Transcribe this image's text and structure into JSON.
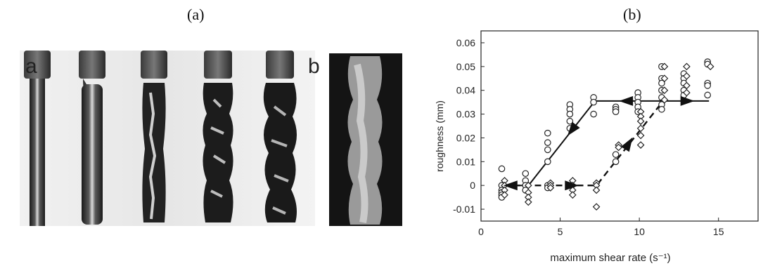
{
  "panel_labels": {
    "left": "(a)",
    "right": "(b)"
  },
  "photo": {
    "sublabel_a": "a",
    "sublabel_b": "b"
  },
  "chart_data": {
    "type": "scatter",
    "xlabel": "maximum shear rate (s⁻¹)",
    "ylabel": "roughness (mm)",
    "xlim": [
      0,
      17.5
    ],
    "ylim": [
      -0.015,
      0.065
    ],
    "xticks": [
      0,
      5,
      10,
      15
    ],
    "yticks": [
      -0.01,
      0,
      0.01,
      0.02,
      0.03,
      0.04,
      0.05,
      0.06
    ],
    "xtick_labels": [
      "0",
      "5",
      "10",
      "15"
    ],
    "ytick_labels": [
      "-0.01",
      "0",
      "0.01",
      "0.02",
      "0.03",
      "0.04",
      "0.05",
      "0.06"
    ],
    "grid": false,
    "series": [
      {
        "marker": "circle",
        "points": [
          [
            1.4,
            0.007
          ],
          [
            1.4,
            0.0
          ],
          [
            1.4,
            -0.002
          ],
          [
            1.4,
            -0.003
          ],
          [
            1.4,
            -0.004
          ],
          [
            1.4,
            -0.005
          ],
          [
            2.9,
            0.005
          ],
          [
            2.9,
            0.002
          ],
          [
            2.9,
            0.0
          ],
          [
            2.9,
            -0.002
          ],
          [
            4.3,
            0.022
          ],
          [
            4.3,
            0.018
          ],
          [
            4.3,
            0.015
          ],
          [
            4.3,
            0.01
          ],
          [
            4.3,
            0.0
          ],
          [
            4.3,
            -0.001
          ],
          [
            5.7,
            0.034
          ],
          [
            5.7,
            0.032
          ],
          [
            5.7,
            0.03
          ],
          [
            5.7,
            0.027
          ],
          [
            5.7,
            0.024
          ],
          [
            5.7,
            0.0
          ],
          [
            7.2,
            0.037
          ],
          [
            7.2,
            0.035
          ],
          [
            7.2,
            0.03
          ],
          [
            8.6,
            0.033
          ],
          [
            8.6,
            0.032
          ],
          [
            8.6,
            0.031
          ],
          [
            8.6,
            0.013
          ],
          [
            8.6,
            0.01
          ],
          [
            10.0,
            0.039
          ],
          [
            10.0,
            0.037
          ],
          [
            10.0,
            0.035
          ],
          [
            10.0,
            0.033
          ],
          [
            10.0,
            0.031
          ],
          [
            11.5,
            0.05
          ],
          [
            11.5,
            0.045
          ],
          [
            11.5,
            0.043
          ],
          [
            11.5,
            0.04
          ],
          [
            11.5,
            0.037
          ],
          [
            11.5,
            0.034
          ],
          [
            11.5,
            0.032
          ],
          [
            12.9,
            0.047
          ],
          [
            12.9,
            0.045
          ],
          [
            12.9,
            0.043
          ],
          [
            12.9,
            0.04
          ],
          [
            12.9,
            0.038
          ],
          [
            14.4,
            0.052
          ],
          [
            14.4,
            0.051
          ],
          [
            14.4,
            0.043
          ],
          [
            14.4,
            0.042
          ],
          [
            14.4,
            0.038
          ]
        ]
      },
      {
        "marker": "diamond",
        "points": [
          [
            1.4,
            0.002
          ],
          [
            1.4,
            0.0
          ],
          [
            1.4,
            -0.002
          ],
          [
            1.4,
            -0.004
          ],
          [
            2.9,
            0.0
          ],
          [
            2.9,
            -0.003
          ],
          [
            2.9,
            -0.005
          ],
          [
            2.9,
            -0.007
          ],
          [
            4.3,
            0.001
          ],
          [
            4.3,
            0.0
          ],
          [
            4.3,
            -0.001
          ],
          [
            5.7,
            0.002
          ],
          [
            5.7,
            0.0
          ],
          [
            5.7,
            -0.002
          ],
          [
            5.7,
            -0.004
          ],
          [
            7.2,
            0.001
          ],
          [
            7.2,
            0.0
          ],
          [
            7.2,
            -0.002
          ],
          [
            7.2,
            -0.009
          ],
          [
            8.6,
            0.017
          ],
          [
            8.6,
            0.016
          ],
          [
            10.0,
            0.031
          ],
          [
            10.0,
            0.029
          ],
          [
            10.0,
            0.027
          ],
          [
            10.0,
            0.024
          ],
          [
            10.0,
            0.021
          ],
          [
            10.0,
            0.017
          ],
          [
            11.5,
            0.05
          ],
          [
            11.5,
            0.045
          ],
          [
            11.5,
            0.04
          ],
          [
            11.5,
            0.036
          ],
          [
            12.9,
            0.05
          ],
          [
            12.9,
            0.046
          ],
          [
            12.9,
            0.042
          ],
          [
            12.9,
            0.039
          ],
          [
            14.4,
            0.05
          ]
        ]
      }
    ],
    "lines": [
      {
        "style": "solid",
        "points": [
          [
            1.4,
            0.0
          ],
          [
            3.0,
            0.0
          ],
          [
            7.2,
            0.0355
          ],
          [
            14.4,
            0.0355
          ]
        ]
      },
      {
        "style": "dashed",
        "points": [
          [
            1.4,
            0.0
          ],
          [
            7.3,
            0.0
          ],
          [
            11.5,
            0.0355
          ]
        ]
      }
    ],
    "arrows": [
      {
        "style": "solid",
        "at": [
          6.0,
          0.0255
        ],
        "toward": [
          5.3,
          0.0195
        ]
      },
      {
        "style": "solid",
        "at": [
          9.6,
          0.0355
        ],
        "toward": [
          8.2,
          0.0355
        ]
      },
      {
        "style": "solid",
        "at": [
          12.6,
          0.0355
        ],
        "toward": [
          14.0,
          0.0355
        ]
      },
      {
        "style": "dashed",
        "at": [
          2.3,
          0.0
        ],
        "toward": [
          1.6,
          0.0
        ]
      },
      {
        "style": "dashed",
        "at": [
          5.3,
          0.0
        ],
        "toward": [
          6.4,
          0.0
        ]
      },
      {
        "style": "dashed",
        "at": [
          9.1,
          0.0152
        ],
        "toward": [
          9.6,
          0.0205
        ]
      }
    ]
  }
}
